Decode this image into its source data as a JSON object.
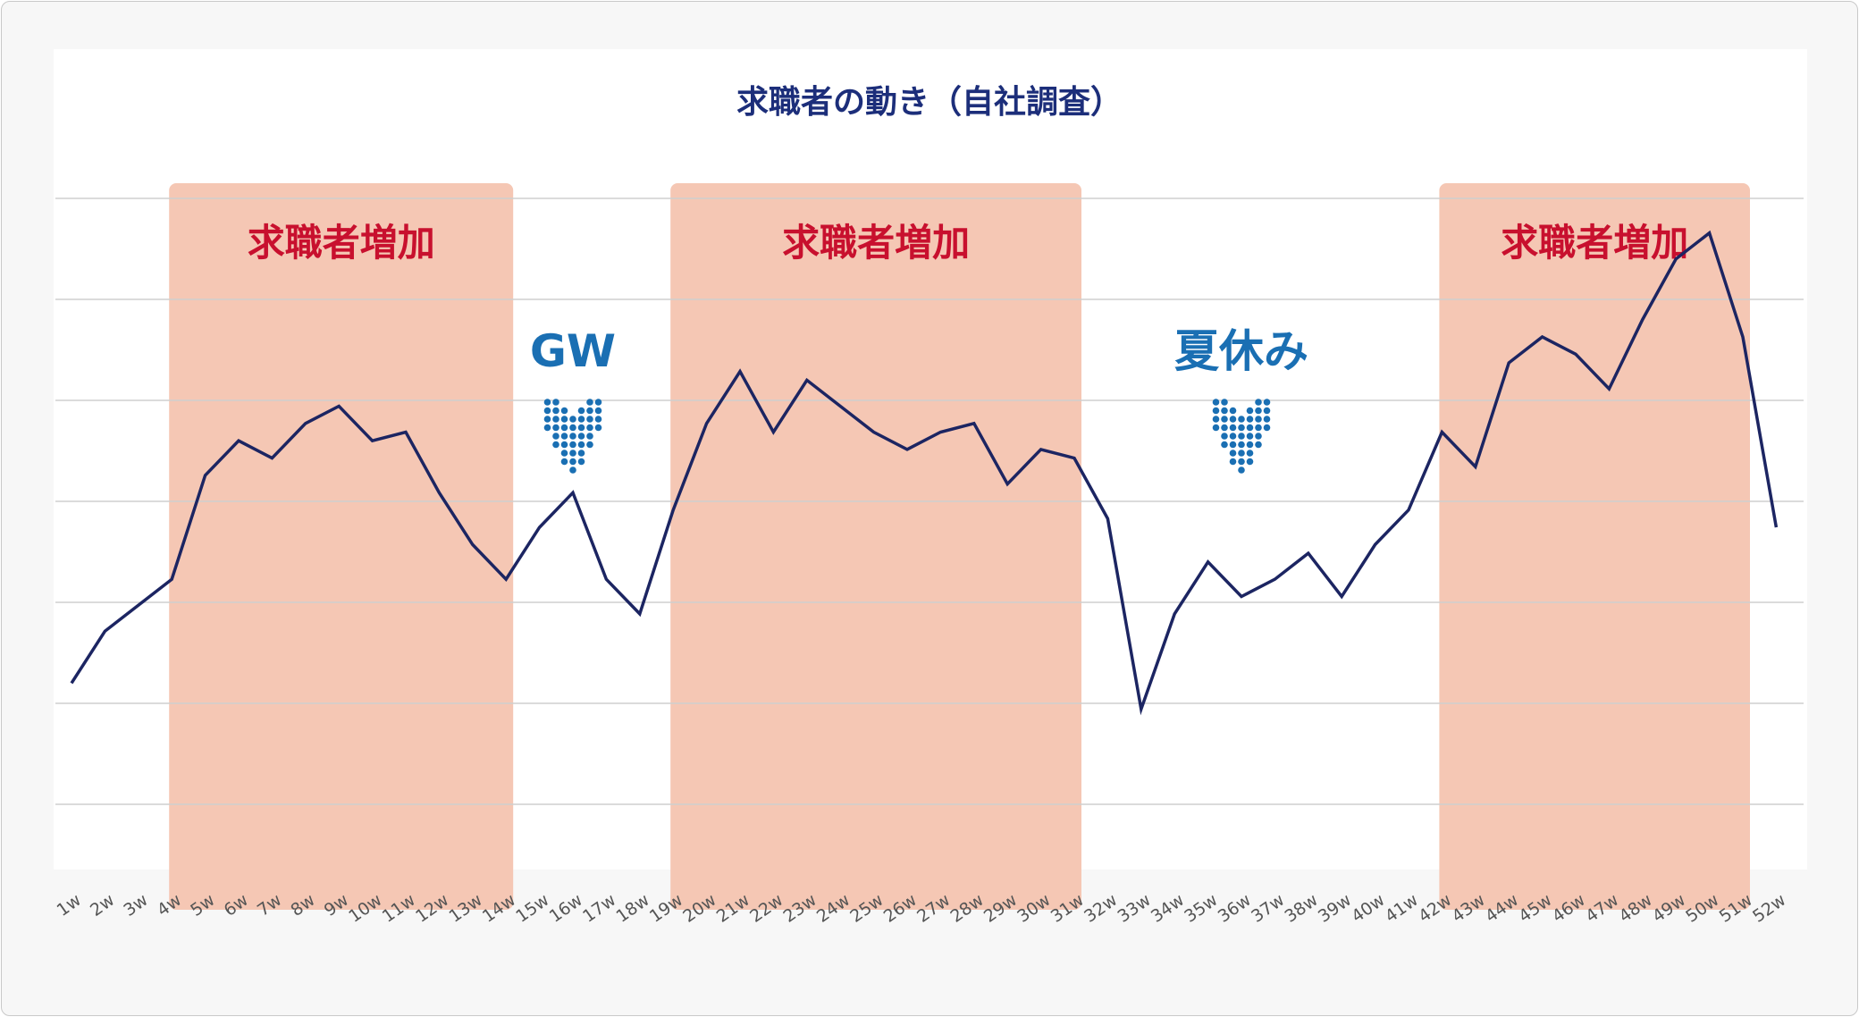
{
  "chart_data": {
    "type": "line",
    "title": "求職者の動き（自社調査）",
    "x": [
      "1w",
      "2w",
      "3w",
      "4w",
      "5w",
      "6w",
      "7w",
      "8w",
      "9w",
      "10w",
      "11w",
      "12w",
      "13w",
      "14w",
      "15w",
      "16w",
      "17w",
      "18w",
      "19w",
      "20w",
      "21w",
      "22w",
      "23w",
      "24w",
      "25w",
      "26w",
      "27w",
      "28w",
      "29w",
      "30w",
      "31w",
      "32w",
      "33w",
      "34w",
      "35w",
      "36w",
      "37w",
      "38w",
      "39w",
      "40w",
      "41w",
      "42w",
      "43w",
      "44w",
      "45w",
      "46w",
      "47w",
      "48w",
      "49w",
      "50w",
      "51w",
      "52w"
    ],
    "values": [
      1.4,
      2.0,
      2.3,
      2.6,
      3.8,
      4.2,
      4.0,
      4.4,
      4.6,
      4.2,
      4.3,
      3.6,
      3.0,
      2.6,
      3.2,
      3.6,
      2.6,
      2.2,
      3.4,
      4.4,
      5.0,
      4.3,
      4.9,
      4.6,
      4.3,
      4.1,
      4.3,
      4.4,
      3.7,
      4.1,
      4.0,
      3.3,
      1.1,
      2.2,
      2.8,
      2.4,
      2.6,
      2.9,
      2.4,
      3.0,
      3.4,
      4.3,
      3.9,
      5.1,
      5.4,
      5.2,
      4.8,
      5.6,
      6.3,
      6.6,
      5.4,
      3.2
    ],
    "ylim": [
      0,
      7
    ],
    "grid": true,
    "bands": [
      {
        "label": "求職者増加",
        "from": "4w",
        "to": "14w"
      },
      {
        "label": "求職者増加",
        "from": "19w",
        "to": "31w"
      },
      {
        "label": "求職者増加",
        "from": "42w",
        "to": "51w"
      }
    ],
    "annotations": [
      {
        "label": "GW",
        "at": "16w"
      },
      {
        "label": "夏休み",
        "at": "36w"
      }
    ],
    "colors": {
      "line": "#1c2562",
      "band": "#f5c7b4",
      "band_label": "#c8102e",
      "annotation": "#1a6fb3",
      "title": "#1c2e7a",
      "grid": "#cfcfcf",
      "tick": "#555555"
    }
  }
}
